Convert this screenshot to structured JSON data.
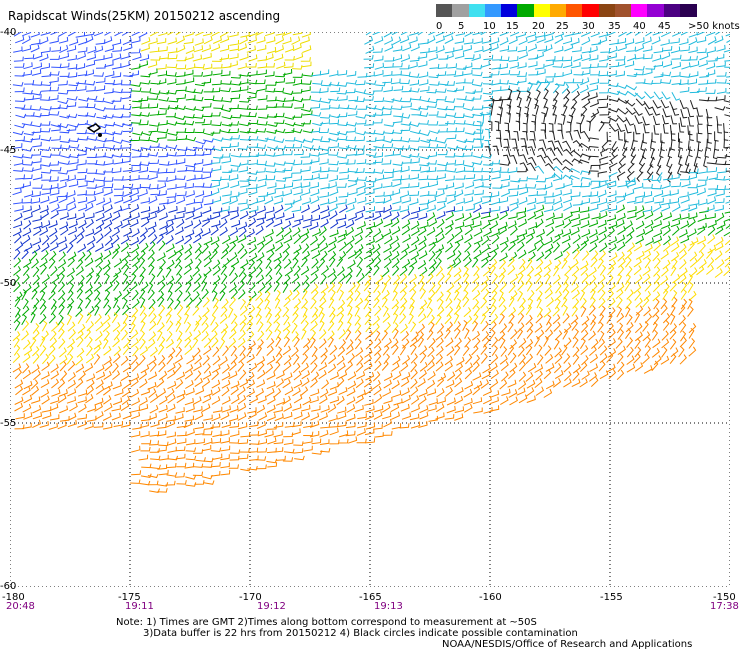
{
  "title": "Rapidscat Winds(25KM) 20150212 ascending",
  "legend": {
    "labels": [
      "0",
      "5",
      "10",
      "15",
      "20",
      "25",
      "30",
      "35",
      "40",
      "45",
      ">50 knots"
    ],
    "colors": [
      "#555555",
      "#a0a0a0",
      "#40e0f0",
      "#3399ff",
      "#0000dd",
      "#00aa00",
      "#ffff00",
      "#ffaa00",
      "#ff5500",
      "#ff0000",
      "#8b4513",
      "#a0522d",
      "#ff00ff",
      "#9400d3",
      "#4b0082",
      "#2a0050"
    ]
  },
  "axes": {
    "x_ticks": [
      "-180",
      "-175",
      "-170",
      "-165",
      "-160",
      "-155",
      "-150"
    ],
    "y_ticks": [
      "-40",
      "-45",
      "-50",
      "-55",
      "-60"
    ],
    "times": [
      "20:48",
      "19:11",
      "19:12",
      "19:13",
      "17:38"
    ]
  },
  "notes": {
    "line1": "Note: 1) Times are GMT 2)Times along bottom correspond to measurement at ~50S",
    "line2": "3)Data buffer is 22 hrs from 20150212 4) Black circles indicate possible contamination",
    "line3": "NOAA/NESDIS/Office of Research and Applications"
  }
}
